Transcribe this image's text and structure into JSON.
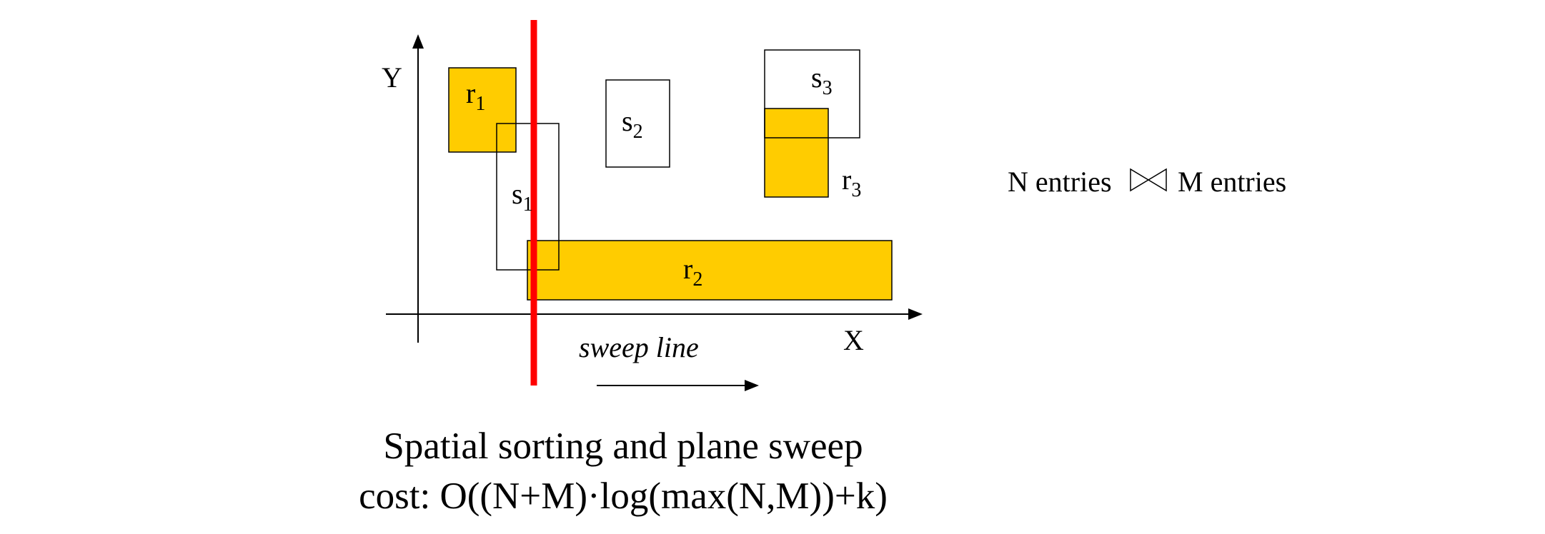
{
  "axes": {
    "y_label": "Y",
    "x_label": "X"
  },
  "rectangles": {
    "r1": {
      "letter": "r",
      "index": "1"
    },
    "r2": {
      "letter": "r",
      "index": "2"
    },
    "r3": {
      "letter": "r",
      "index": "3"
    },
    "s1": {
      "letter": "s",
      "index": "1"
    },
    "s2": {
      "letter": "s",
      "index": "2"
    },
    "s3": {
      "letter": "s",
      "index": "3"
    }
  },
  "sweep": {
    "label": "sweep line",
    "line_color": "#FF0000"
  },
  "join": {
    "left": "N entries",
    "right": "M entries",
    "symbol": "bowtie-join-icon"
  },
  "caption": {
    "line1": "Spatial sorting and plane sweep",
    "line2": "cost: O((N+M)·log(max(N,M))+k)"
  },
  "colors": {
    "fill": "#FFCC00",
    "stroke": "#000000",
    "background": "#FFFFFF"
  }
}
